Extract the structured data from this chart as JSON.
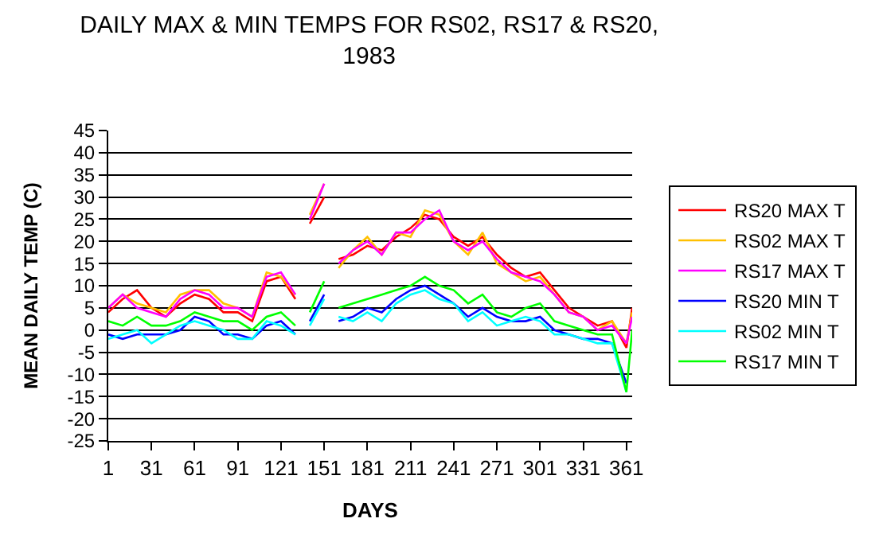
{
  "chart_data": {
    "type": "line",
    "title": "DAILY MAX & MIN TEMPS FOR RS02, RS17 & RS20,\n1983",
    "xlabel": "DAYS",
    "ylabel": "MEAN DAILY TEMP (C)",
    "x": [
      1,
      11,
      21,
      31,
      41,
      51,
      61,
      71,
      81,
      91,
      101,
      111,
      121,
      131,
      135,
      141,
      151,
      155,
      161,
      171,
      181,
      191,
      201,
      211,
      221,
      231,
      241,
      251,
      261,
      271,
      281,
      291,
      301,
      311,
      321,
      331,
      341,
      351,
      361,
      365
    ],
    "series": [
      {
        "name": "RS20 MAX T",
        "color": "#ff0000",
        "values": [
          4,
          7,
          9,
          5,
          3,
          6,
          8,
          7,
          4,
          4,
          2,
          11,
          12,
          7,
          null,
          24,
          30,
          null,
          16,
          17,
          19,
          18,
          21,
          23,
          26,
          25,
          21,
          19,
          21,
          17,
          14,
          12,
          13,
          9,
          5,
          3,
          1,
          2,
          -4,
          5
        ]
      },
      {
        "name": "RS02 MAX T",
        "color": "#ffc000",
        "values": [
          5,
          8,
          6,
          5,
          4,
          8,
          9,
          9,
          6,
          5,
          3,
          13,
          12,
          8,
          null,
          26,
          33,
          null,
          14,
          18,
          21,
          17,
          22,
          21,
          27,
          26,
          20,
          17,
          22,
          15,
          13,
          11,
          12,
          8,
          4,
          3,
          0,
          2,
          -3,
          4
        ]
      },
      {
        "name": "RS17 MAX T",
        "color": "#ff00ff",
        "values": [
          5,
          8,
          5,
          4,
          3,
          7,
          9,
          8,
          5,
          5,
          3,
          12,
          13,
          8,
          null,
          25,
          33,
          null,
          15,
          18,
          20,
          17,
          22,
          22,
          25,
          27,
          20,
          18,
          20,
          16,
          13,
          12,
          11,
          8,
          4,
          3,
          0,
          1,
          -3,
          3
        ]
      },
      {
        "name": "RS20 MIN T",
        "color": "#0000ff",
        "values": [
          -1,
          -2,
          -1,
          -1,
          -1,
          0,
          3,
          2,
          -1,
          -1,
          -2,
          1,
          2,
          -1,
          null,
          2,
          8,
          null,
          2,
          3,
          5,
          4,
          7,
          9,
          10,
          8,
          6,
          3,
          5,
          3,
          2,
          2,
          3,
          0,
          -1,
          -2,
          -2,
          -3,
          -12,
          null
        ]
      },
      {
        "name": "RS02 MIN T",
        "color": "#00ffff",
        "values": [
          -2,
          -1,
          0,
          -3,
          -1,
          1,
          2,
          1,
          0,
          -2,
          -2,
          2,
          1,
          -1,
          null,
          1,
          7,
          null,
          3,
          2,
          4,
          2,
          6,
          8,
          9,
          7,
          6,
          2,
          4,
          1,
          2,
          3,
          2,
          -1,
          -1,
          -2,
          -3,
          -3,
          -14,
          null
        ]
      },
      {
        "name": "RS17 MIN T",
        "color": "#00ff00",
        "values": [
          2,
          1,
          3,
          1,
          1,
          2,
          4,
          3,
          2,
          2,
          0,
          3,
          4,
          1,
          null,
          4,
          11,
          null,
          5,
          6,
          7,
          8,
          9,
          10,
          12,
          10,
          9,
          6,
          8,
          4,
          3,
          5,
          6,
          2,
          1,
          0,
          -1,
          -1,
          -14,
          0
        ]
      }
    ],
    "xlim": [
      1,
      365
    ],
    "xticks": [
      1,
      31,
      61,
      91,
      121,
      151,
      181,
      211,
      241,
      271,
      301,
      331,
      361
    ],
    "ylim": [
      -25,
      45
    ],
    "yticks": [
      -25,
      -20,
      -15,
      -10,
      -5,
      0,
      5,
      10,
      15,
      20,
      25,
      30,
      35,
      40,
      45
    ],
    "grid": "y",
    "legend": "right",
    "marker": "none",
    "line_style": "solid"
  }
}
